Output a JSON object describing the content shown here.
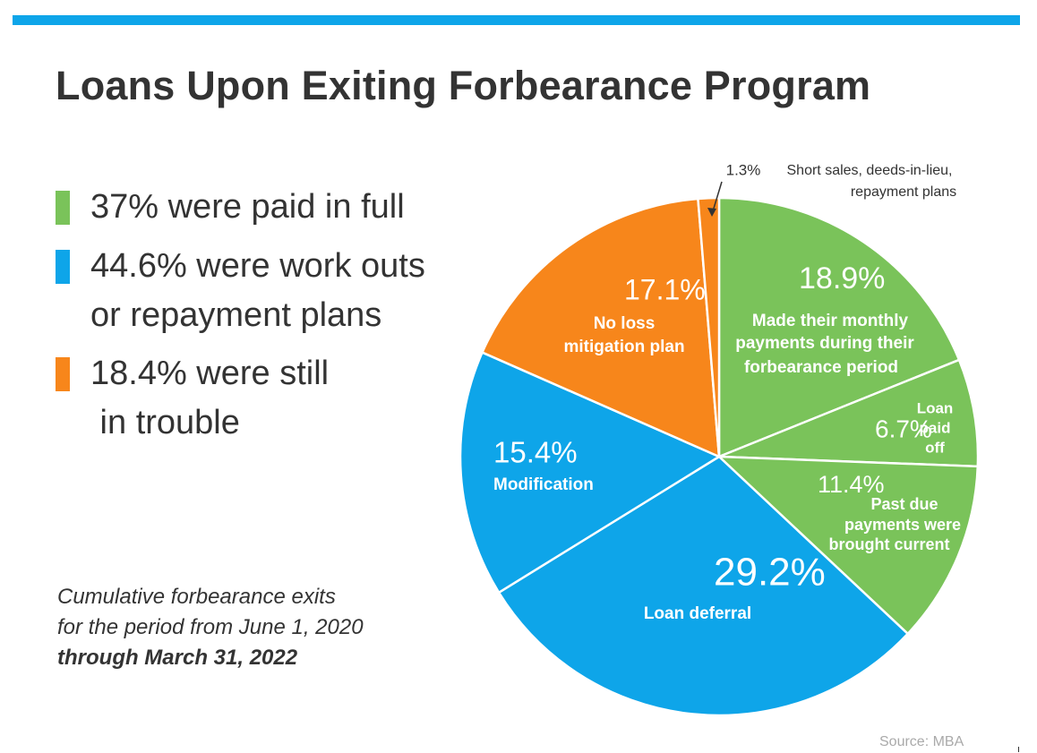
{
  "title": "Loans Upon Exiting Forbearance Program",
  "legend": [
    {
      "lines": [
        "37% were paid in full"
      ],
      "color": "#7ac35a"
    },
    {
      "lines": [
        "44.6% were work outs",
        "or repayment plans"
      ],
      "color": "#0ea5e9"
    },
    {
      "lines": [
        "18.4% were still",
        " in trouble"
      ],
      "color": "#f7861b"
    }
  ],
  "note": {
    "line1": "Cumulative forbearance exits",
    "line2": "for the period from June 1, 2020",
    "line3": "through March 31, 2022"
  },
  "source": "Source: MBA",
  "chart_data": {
    "type": "pie",
    "title": "Loans Upon Exiting Forbearance Program",
    "slices": [
      {
        "value": 18.9,
        "pct_label": "18.9%",
        "text_lines": [
          "Made their monthly",
          "payments during their",
          "forbearance period"
        ],
        "color": "#7ac35a"
      },
      {
        "value": 6.7,
        "pct_label": "6.7%",
        "text_lines": [
          "Loan",
          "paid",
          "off"
        ],
        "color": "#7ac35a"
      },
      {
        "value": 11.4,
        "pct_label": "11.4%",
        "text_lines": [
          "Past due",
          "payments were",
          "brought current"
        ],
        "color": "#7ac35a"
      },
      {
        "value": 29.2,
        "pct_label": "29.2%",
        "text_lines": [
          "Loan deferral"
        ],
        "color": "#0ea5e9"
      },
      {
        "value": 15.4,
        "pct_label": "15.4%",
        "text_lines": [
          "Modification"
        ],
        "color": "#0ea5e9"
      },
      {
        "value": 17.1,
        "pct_label": "17.1%",
        "text_lines": [
          "No loss",
          "mitigation plan"
        ],
        "color": "#f7861b"
      },
      {
        "value": 1.3,
        "pct_label": "1.3%",
        "text_lines": [
          "Short sales, deeds-in-lieu,",
          "repayment plans"
        ],
        "color": "#f7861b"
      }
    ]
  }
}
